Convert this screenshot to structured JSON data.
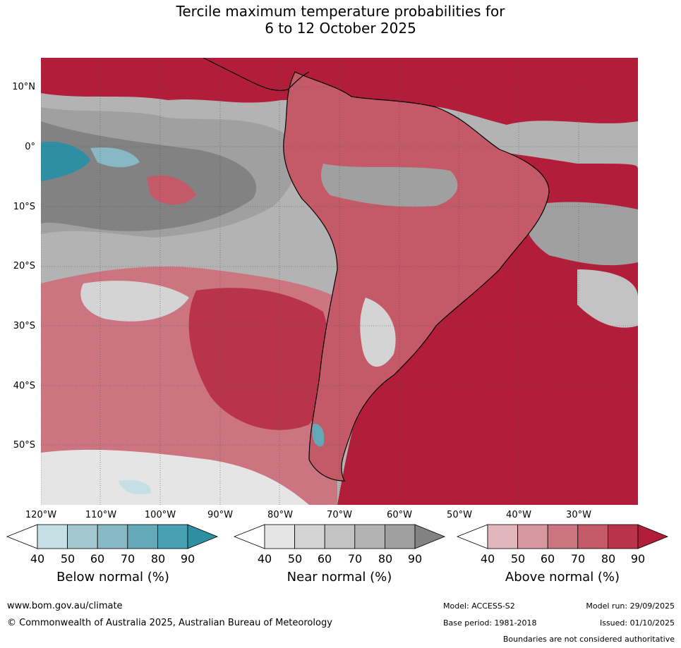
{
  "title": {
    "line1": "Tercile maximum temperature probabilities for",
    "line2": "6 to 12 October 2025"
  },
  "latitude_labels": [
    "10°N",
    "0°",
    "10°S",
    "20°S",
    "30°S",
    "40°S",
    "50°S"
  ],
  "longitude_labels": [
    "120°W",
    "110°W",
    "100°W",
    "90°W",
    "80°W",
    "70°W",
    "60°W",
    "50°W",
    "40°W",
    "30°W"
  ],
  "legends": {
    "below": {
      "title": "Below normal (%)",
      "ticks": [
        "40",
        "50",
        "60",
        "70",
        "80",
        "90"
      ],
      "colors": [
        "#ffffff",
        "#c6dfe5",
        "#a3c7ce",
        "#86b9c3",
        "#64a9b7",
        "#47a1b3",
        "#2e8fa3"
      ]
    },
    "near": {
      "title": "Near normal (%)",
      "ticks": [
        "40",
        "50",
        "60",
        "70",
        "80",
        "90"
      ],
      "colors": [
        "#ffffff",
        "#e5e5e5",
        "#d4d4d4",
        "#c3c3c3",
        "#b3b3b3",
        "#a0a0a0",
        "#828282"
      ]
    },
    "above": {
      "title": "Above normal (%)",
      "ticks": [
        "40",
        "50",
        "60",
        "70",
        "80",
        "90"
      ],
      "colors": [
        "#ffffff",
        "#e2b6bd",
        "#d6979f",
        "#cc7580",
        "#c45a67",
        "#b9344b",
        "#b21d3a"
      ]
    }
  },
  "footer": {
    "website": "www.bom.gov.au/climate",
    "copyright": "© Commonwealth of Australia 2025, Australian Bureau of Meteorology",
    "model": "Model: ACCESS-S2",
    "base_period": "Base period: 1981-2018",
    "model_run": "Model run: 29/09/2025",
    "issued": "Issued: 01/10/2025",
    "disclaimer": "Boundaries are not considered authoritative"
  }
}
